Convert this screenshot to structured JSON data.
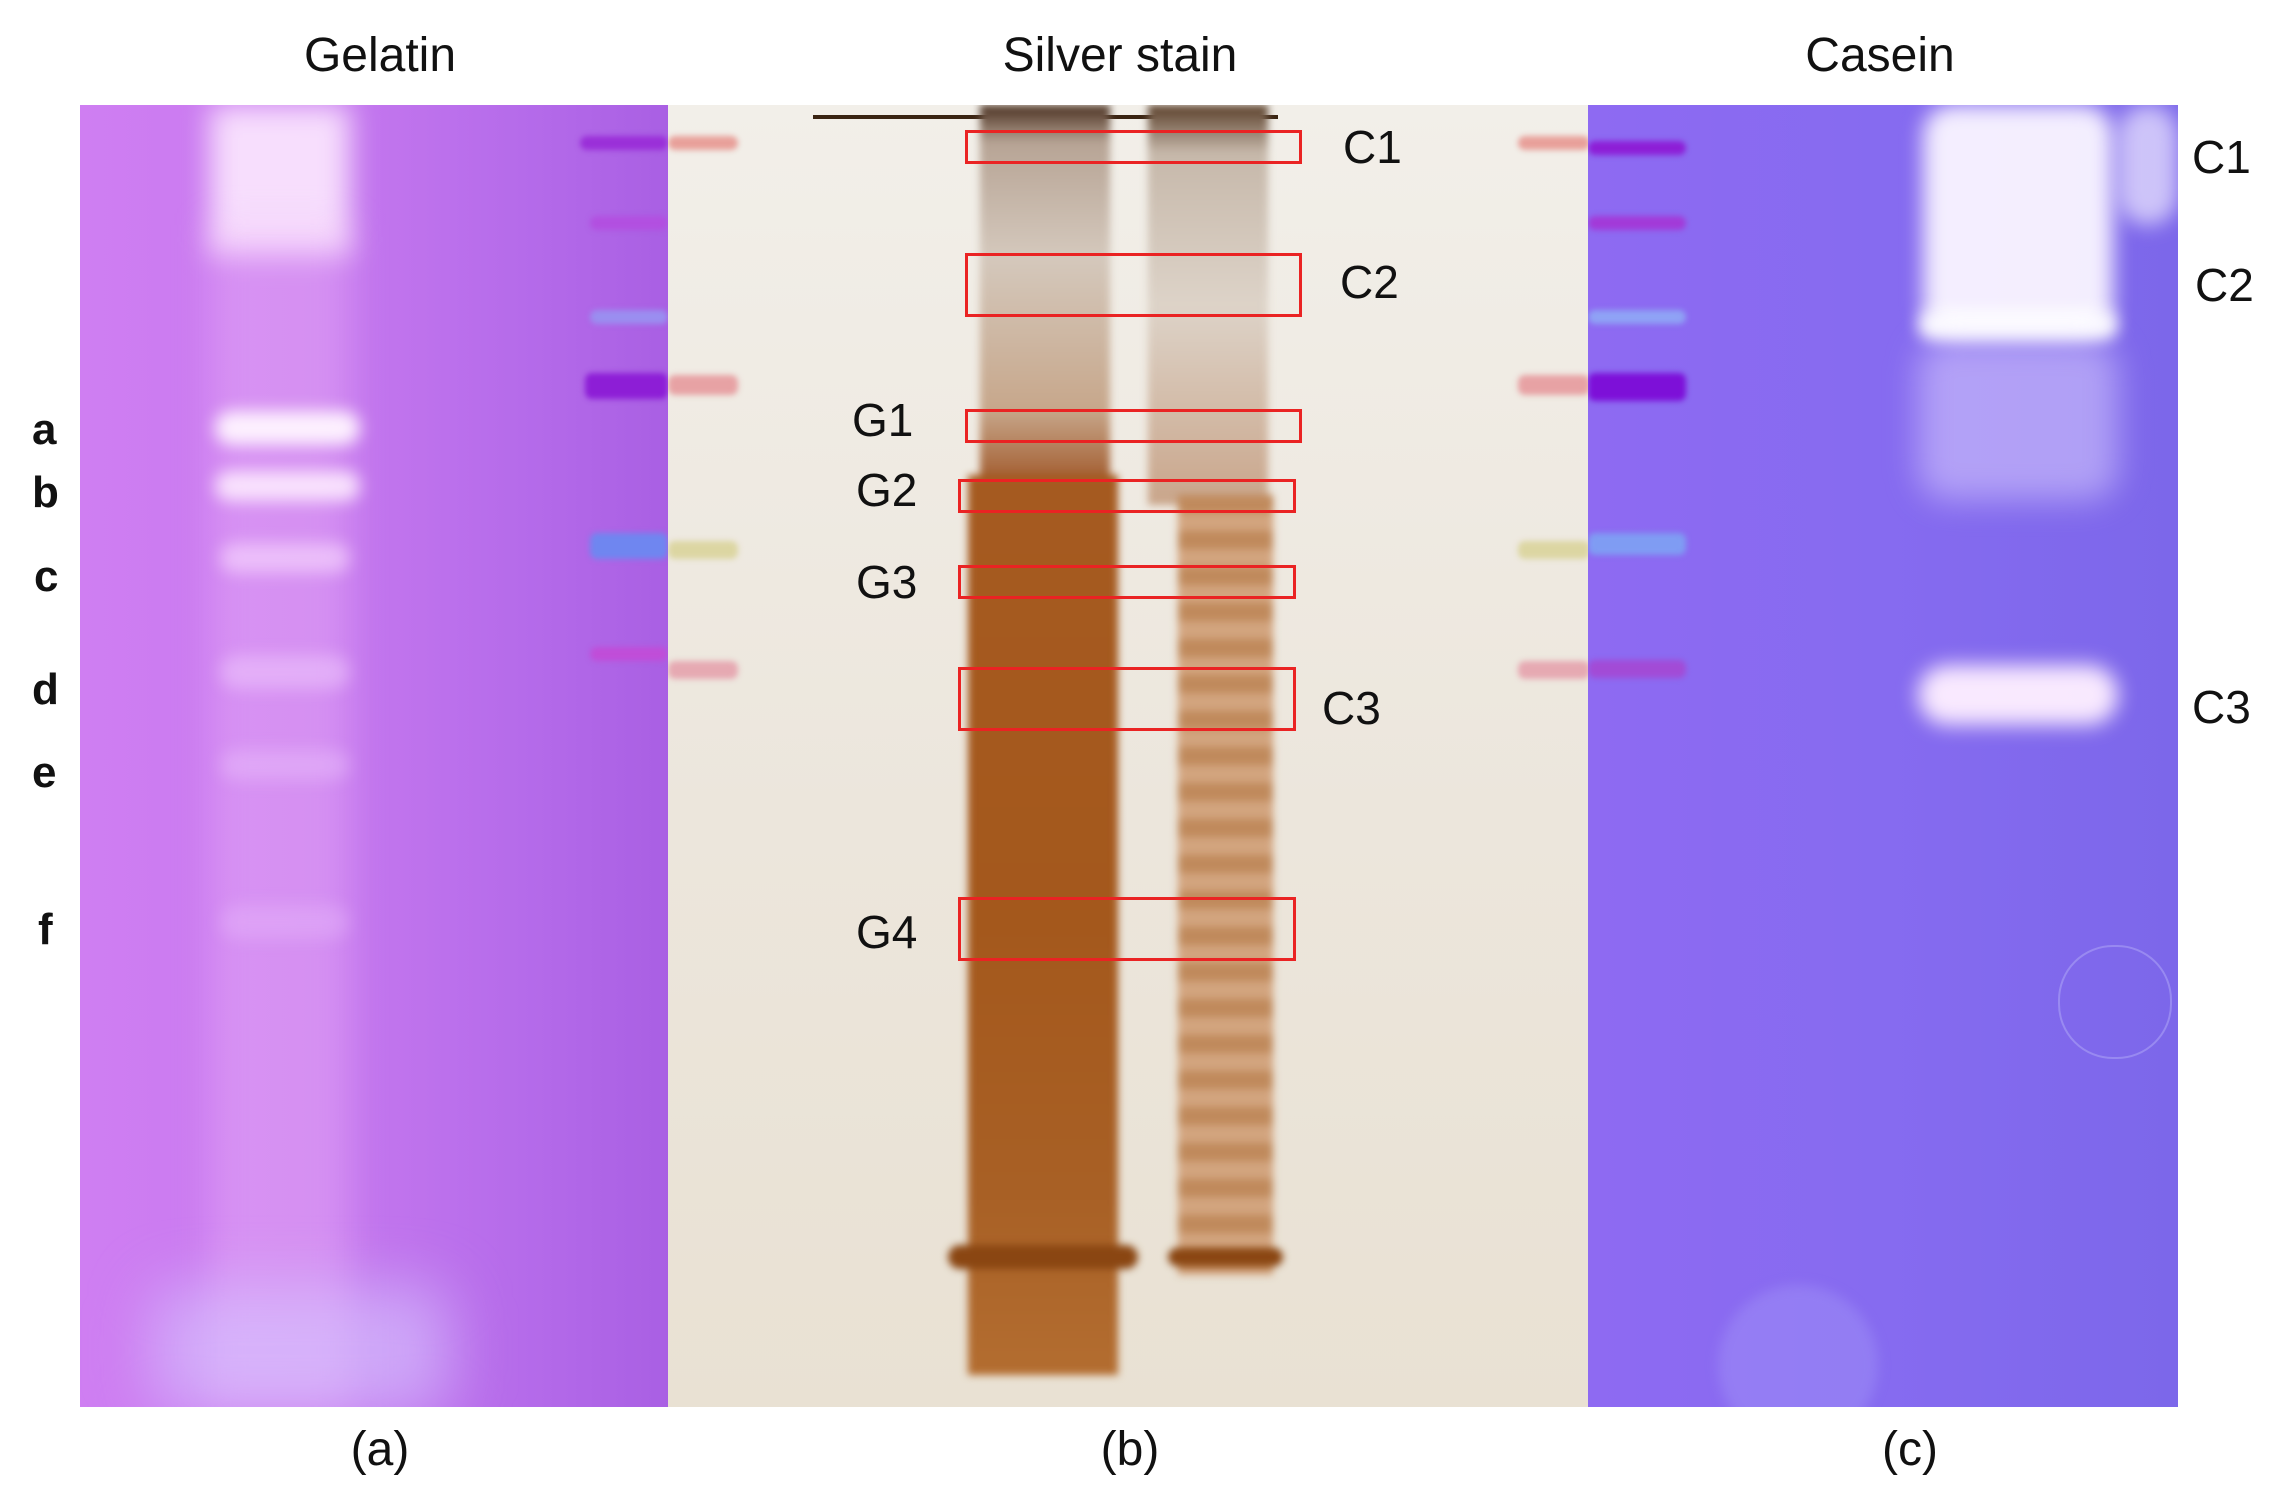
{
  "panels": {
    "a": {
      "title": "Gelatin",
      "caption": "(a)"
    },
    "b": {
      "title": "Silver stain",
      "caption": "(b)"
    },
    "c": {
      "title": "Casein",
      "caption": "(c)"
    }
  },
  "gelatin_band_labels": [
    "a",
    "b",
    "c",
    "d",
    "e",
    "f"
  ],
  "silver_box_labels": {
    "c1": "C1",
    "c2": "C2",
    "g1": "G1",
    "g2": "G2",
    "g3": "G3",
    "c3": "C3",
    "g4": "G4"
  },
  "casein_band_labels": {
    "c1": "C1",
    "c2": "C2",
    "c3": "C3"
  },
  "colors": {
    "box_outline": "#ea2323",
    "silver_stain_brown": "#a4581c",
    "gelatin_background": "#c779ef",
    "casein_background": "#866bf0"
  }
}
